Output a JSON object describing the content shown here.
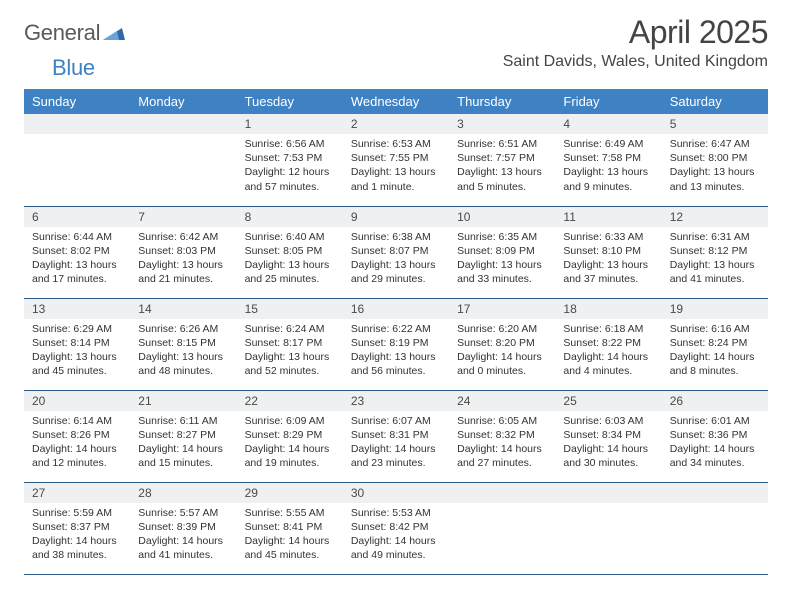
{
  "brand": {
    "word1": "General",
    "word2": "Blue"
  },
  "title": "April 2025",
  "location": "Saint Davids, Wales, United Kingdom",
  "colors": {
    "header_bg": "#3e82c4",
    "header_text": "#ffffff",
    "dayhead_bg": "#eef0f2",
    "rule": "#2b5c8a",
    "logo_gray": "#5a5a5a",
    "logo_blue": "#3e82c4",
    "page_bg": "#ffffff"
  },
  "typography": {
    "title_fontsize": 32,
    "location_fontsize": 16,
    "dayhead_fontsize": 12,
    "body_fontsize": 10.5,
    "header_fontsize": 13
  },
  "day_labels": [
    "Sunday",
    "Monday",
    "Tuesday",
    "Wednesday",
    "Thursday",
    "Friday",
    "Saturday"
  ],
  "weeks": [
    [
      null,
      null,
      {
        "n": "1",
        "sunrise": "Sunrise: 6:56 AM",
        "sunset": "Sunset: 7:53 PM",
        "daylight": "Daylight: 12 hours and 57 minutes."
      },
      {
        "n": "2",
        "sunrise": "Sunrise: 6:53 AM",
        "sunset": "Sunset: 7:55 PM",
        "daylight": "Daylight: 13 hours and 1 minute."
      },
      {
        "n": "3",
        "sunrise": "Sunrise: 6:51 AM",
        "sunset": "Sunset: 7:57 PM",
        "daylight": "Daylight: 13 hours and 5 minutes."
      },
      {
        "n": "4",
        "sunrise": "Sunrise: 6:49 AM",
        "sunset": "Sunset: 7:58 PM",
        "daylight": "Daylight: 13 hours and 9 minutes."
      },
      {
        "n": "5",
        "sunrise": "Sunrise: 6:47 AM",
        "sunset": "Sunset: 8:00 PM",
        "daylight": "Daylight: 13 hours and 13 minutes."
      }
    ],
    [
      {
        "n": "6",
        "sunrise": "Sunrise: 6:44 AM",
        "sunset": "Sunset: 8:02 PM",
        "daylight": "Daylight: 13 hours and 17 minutes."
      },
      {
        "n": "7",
        "sunrise": "Sunrise: 6:42 AM",
        "sunset": "Sunset: 8:03 PM",
        "daylight": "Daylight: 13 hours and 21 minutes."
      },
      {
        "n": "8",
        "sunrise": "Sunrise: 6:40 AM",
        "sunset": "Sunset: 8:05 PM",
        "daylight": "Daylight: 13 hours and 25 minutes."
      },
      {
        "n": "9",
        "sunrise": "Sunrise: 6:38 AM",
        "sunset": "Sunset: 8:07 PM",
        "daylight": "Daylight: 13 hours and 29 minutes."
      },
      {
        "n": "10",
        "sunrise": "Sunrise: 6:35 AM",
        "sunset": "Sunset: 8:09 PM",
        "daylight": "Daylight: 13 hours and 33 minutes."
      },
      {
        "n": "11",
        "sunrise": "Sunrise: 6:33 AM",
        "sunset": "Sunset: 8:10 PM",
        "daylight": "Daylight: 13 hours and 37 minutes."
      },
      {
        "n": "12",
        "sunrise": "Sunrise: 6:31 AM",
        "sunset": "Sunset: 8:12 PM",
        "daylight": "Daylight: 13 hours and 41 minutes."
      }
    ],
    [
      {
        "n": "13",
        "sunrise": "Sunrise: 6:29 AM",
        "sunset": "Sunset: 8:14 PM",
        "daylight": "Daylight: 13 hours and 45 minutes."
      },
      {
        "n": "14",
        "sunrise": "Sunrise: 6:26 AM",
        "sunset": "Sunset: 8:15 PM",
        "daylight": "Daylight: 13 hours and 48 minutes."
      },
      {
        "n": "15",
        "sunrise": "Sunrise: 6:24 AM",
        "sunset": "Sunset: 8:17 PM",
        "daylight": "Daylight: 13 hours and 52 minutes."
      },
      {
        "n": "16",
        "sunrise": "Sunrise: 6:22 AM",
        "sunset": "Sunset: 8:19 PM",
        "daylight": "Daylight: 13 hours and 56 minutes."
      },
      {
        "n": "17",
        "sunrise": "Sunrise: 6:20 AM",
        "sunset": "Sunset: 8:20 PM",
        "daylight": "Daylight: 14 hours and 0 minutes."
      },
      {
        "n": "18",
        "sunrise": "Sunrise: 6:18 AM",
        "sunset": "Sunset: 8:22 PM",
        "daylight": "Daylight: 14 hours and 4 minutes."
      },
      {
        "n": "19",
        "sunrise": "Sunrise: 6:16 AM",
        "sunset": "Sunset: 8:24 PM",
        "daylight": "Daylight: 14 hours and 8 minutes."
      }
    ],
    [
      {
        "n": "20",
        "sunrise": "Sunrise: 6:14 AM",
        "sunset": "Sunset: 8:26 PM",
        "daylight": "Daylight: 14 hours and 12 minutes."
      },
      {
        "n": "21",
        "sunrise": "Sunrise: 6:11 AM",
        "sunset": "Sunset: 8:27 PM",
        "daylight": "Daylight: 14 hours and 15 minutes."
      },
      {
        "n": "22",
        "sunrise": "Sunrise: 6:09 AM",
        "sunset": "Sunset: 8:29 PM",
        "daylight": "Daylight: 14 hours and 19 minutes."
      },
      {
        "n": "23",
        "sunrise": "Sunrise: 6:07 AM",
        "sunset": "Sunset: 8:31 PM",
        "daylight": "Daylight: 14 hours and 23 minutes."
      },
      {
        "n": "24",
        "sunrise": "Sunrise: 6:05 AM",
        "sunset": "Sunset: 8:32 PM",
        "daylight": "Daylight: 14 hours and 27 minutes."
      },
      {
        "n": "25",
        "sunrise": "Sunrise: 6:03 AM",
        "sunset": "Sunset: 8:34 PM",
        "daylight": "Daylight: 14 hours and 30 minutes."
      },
      {
        "n": "26",
        "sunrise": "Sunrise: 6:01 AM",
        "sunset": "Sunset: 8:36 PM",
        "daylight": "Daylight: 14 hours and 34 minutes."
      }
    ],
    [
      {
        "n": "27",
        "sunrise": "Sunrise: 5:59 AM",
        "sunset": "Sunset: 8:37 PM",
        "daylight": "Daylight: 14 hours and 38 minutes."
      },
      {
        "n": "28",
        "sunrise": "Sunrise: 5:57 AM",
        "sunset": "Sunset: 8:39 PM",
        "daylight": "Daylight: 14 hours and 41 minutes."
      },
      {
        "n": "29",
        "sunrise": "Sunrise: 5:55 AM",
        "sunset": "Sunset: 8:41 PM",
        "daylight": "Daylight: 14 hours and 45 minutes."
      },
      {
        "n": "30",
        "sunrise": "Sunrise: 5:53 AM",
        "sunset": "Sunset: 8:42 PM",
        "daylight": "Daylight: 14 hours and 49 minutes."
      },
      null,
      null,
      null
    ]
  ]
}
